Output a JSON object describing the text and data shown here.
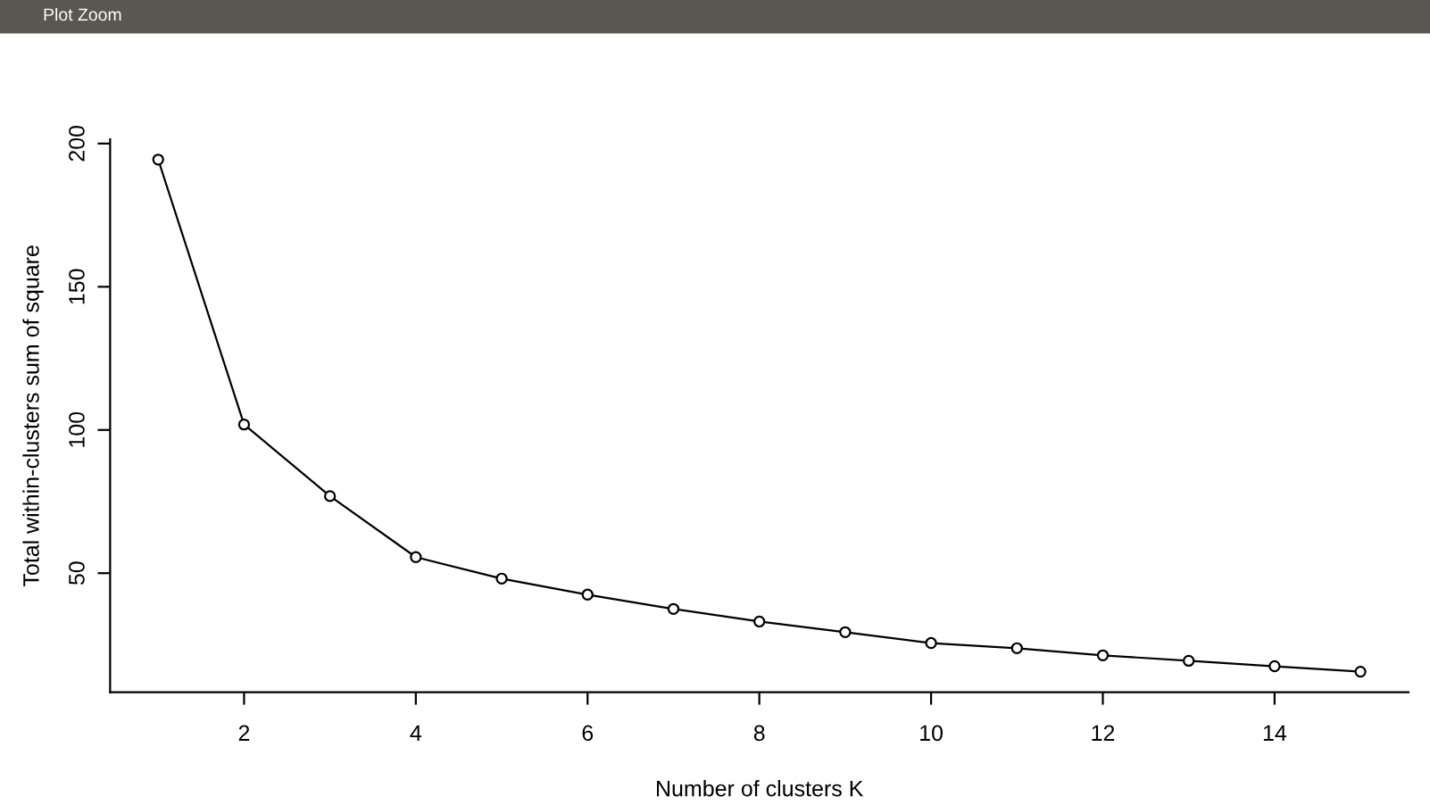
{
  "chart_data": {
    "type": "line",
    "xlabel": "Number of clusters K",
    "ylabel": "Total within-clusters sum of square",
    "annotations": [
      "Plot Zoom"
    ],
    "x": [
      1,
      2,
      3,
      4,
      5,
      6,
      7,
      8,
      9,
      10,
      11,
      12,
      13,
      14,
      15
    ],
    "series": [
      {
        "color": "#000000",
        "values": [
          194.4,
          101.9,
          76.9,
          55.6,
          48.1,
          42.5,
          37.5,
          33.1,
          29.4,
          25.6,
          23.8,
          21.3,
          19.4,
          17.5,
          15.6
        ]
      }
    ],
    "xlim": [
      0.44,
      15.56
    ],
    "ylim": [
      8.4,
      201.5
    ],
    "xticks": [
      2,
      4,
      6,
      8,
      10,
      12,
      14
    ],
    "yticks": [
      50,
      100,
      150,
      200
    ],
    "marker": "circle",
    "line_style": "solid",
    "grid": false,
    "legend": false
  }
}
